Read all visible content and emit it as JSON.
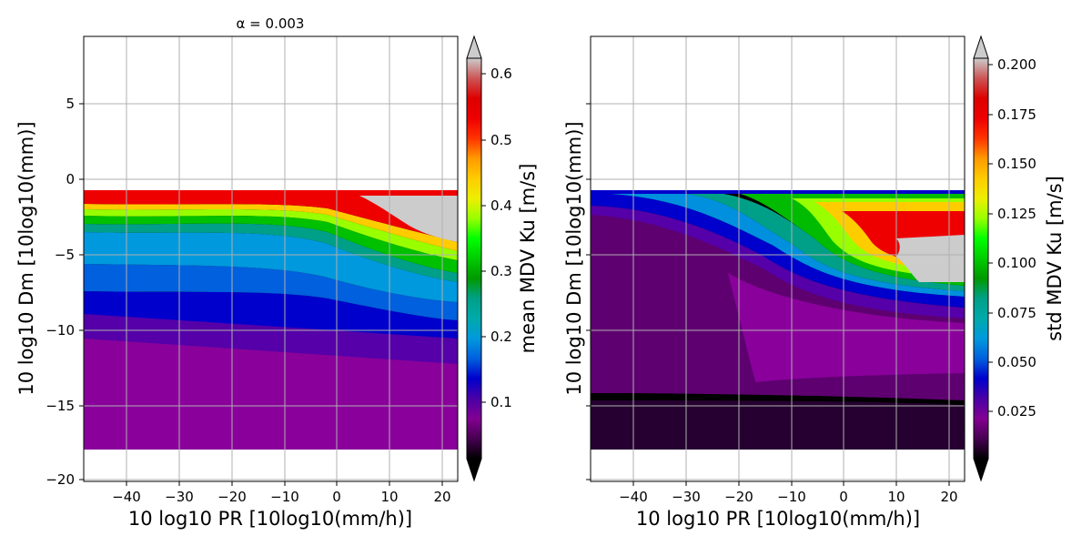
{
  "chart_data": [
    {
      "type": "heatmap",
      "title": "α = 0.003",
      "xlabel": "10 log10 PR [10log10(mm/h)]",
      "ylabel": "10 log10 Dm [10log10(mm)]",
      "xlim": [
        -48.5,
        23
      ],
      "ylim": [
        -20.3,
        9.5
      ],
      "xticks": [
        -40,
        -30,
        -20,
        -10,
        0,
        10,
        20
      ],
      "yticks": [
        5,
        0,
        -5,
        -10,
        -15,
        -20
      ],
      "grid": true,
      "colormap": "nipy_spectral",
      "colorbar": {
        "label": "mean MDV Ku [m/s]",
        "range": [
          0,
          0.64
        ],
        "ticks": [
          0.1,
          0.2,
          0.3,
          0.4,
          0.5,
          0.6
        ],
        "extend": "both"
      },
      "data_extent": {
        "x": [
          -48.5,
          23
        ],
        "y": [
          -18.0,
          -0.8
        ]
      }
    },
    {
      "type": "heatmap",
      "title": "",
      "xlabel": "10 log10 PR [10log10(mm/h)]",
      "ylabel": "10 log10 Dm [10log10(mm)]",
      "xlim": [
        -48.5,
        23
      ],
      "ylim": [
        -20.3,
        9.5
      ],
      "xticks": [
        -40,
        -30,
        -20,
        -10,
        0,
        10,
        20
      ],
      "yticks": [],
      "grid": true,
      "colormap": "nipy_spectral",
      "colorbar": {
        "label": "std MDV Ku [m/s]",
        "range": [
          0,
          0.212
        ],
        "ticks": [
          0.025,
          0.05,
          0.075,
          0.1,
          0.125,
          0.15,
          0.175,
          0.2
        ],
        "tick_labels": [
          "0.025",
          "0.050",
          "0.075",
          "0.100",
          "0.125",
          "0.150",
          "0.175",
          "0.200"
        ],
        "extend": "both"
      },
      "data_extent": {
        "x": [
          -48.5,
          23
        ],
        "y": [
          -18.0,
          -0.8
        ]
      }
    }
  ]
}
